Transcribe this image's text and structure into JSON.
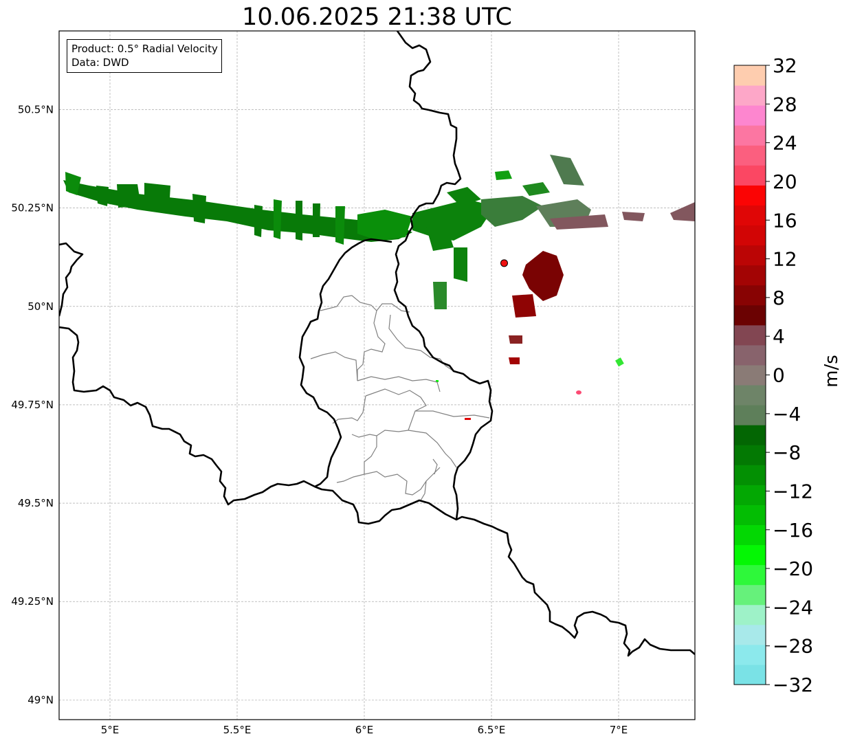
{
  "title": "10.06.2025 21:38 UTC",
  "info": {
    "product": "Product: 0.5° Radial Velocity",
    "source": "Data: DWD"
  },
  "map": {
    "lon_range": [
      4.8,
      7.3
    ],
    "lat_range": [
      48.95,
      50.7
    ],
    "lon_ticks": [
      {
        "value": 5.0,
        "label": "5°E"
      },
      {
        "value": 5.5,
        "label": "5.5°E"
      },
      {
        "value": 6.0,
        "label": "6°E"
      },
      {
        "value": 6.5,
        "label": "6.5°E"
      },
      {
        "value": 7.0,
        "label": "7°E"
      }
    ],
    "lat_ticks": [
      {
        "value": 49.0,
        "label": "49°N"
      },
      {
        "value": 49.25,
        "label": "49.25°N"
      },
      {
        "value": 49.5,
        "label": "49.5°N"
      },
      {
        "value": 49.75,
        "label": "49.75°N"
      },
      {
        "value": 50.0,
        "label": "50°N"
      },
      {
        "value": 50.25,
        "label": "50.25°N"
      },
      {
        "value": 50.5,
        "label": "50.5°N"
      }
    ],
    "gridlines": true,
    "radar_site": {
      "lon": 6.55,
      "lat": 50.11,
      "color": "#ee1111"
    }
  },
  "colorbar": {
    "label": "m/s",
    "min": -32,
    "max": 32,
    "step": 2.5,
    "ticks": [
      {
        "value": 32,
        "label": "32"
      },
      {
        "value": 28,
        "label": "28"
      },
      {
        "value": 24,
        "label": "24"
      },
      {
        "value": 20,
        "label": "20"
      },
      {
        "value": 16,
        "label": "16"
      },
      {
        "value": 12,
        "label": "12"
      },
      {
        "value": 8,
        "label": "8"
      },
      {
        "value": 4,
        "label": "4"
      },
      {
        "value": 0,
        "label": "0"
      },
      {
        "value": -4,
        "label": "−4"
      },
      {
        "value": -8,
        "label": "−8"
      },
      {
        "value": -12,
        "label": "−12"
      },
      {
        "value": -16,
        "label": "−16"
      },
      {
        "value": -20,
        "label": "−20"
      },
      {
        "value": -24,
        "label": "−24"
      },
      {
        "value": -28,
        "label": "−28"
      },
      {
        "value": -32,
        "label": "−32"
      }
    ],
    "colors_bottom_to_top": [
      "#7ae2e6",
      "#8ce9ec",
      "#a8e9ea",
      "#9ef2c8",
      "#66f17b",
      "#2ef83a",
      "#04f704",
      "#03d803",
      "#03bd03",
      "#03a803",
      "#039003",
      "#037903",
      "#036603",
      "#5e7f5a",
      "#6e8468",
      "#8a7b76",
      "#88636c",
      "#824652",
      "#6b0202",
      "#880303",
      "#a30404",
      "#bb0505",
      "#d20505",
      "#e00606",
      "#fb0404",
      "#fb4763",
      "#fb5f7f",
      "#fc76a2",
      "#fd86cf",
      "#fda7c8",
      "#fecdaf"
    ]
  }
}
